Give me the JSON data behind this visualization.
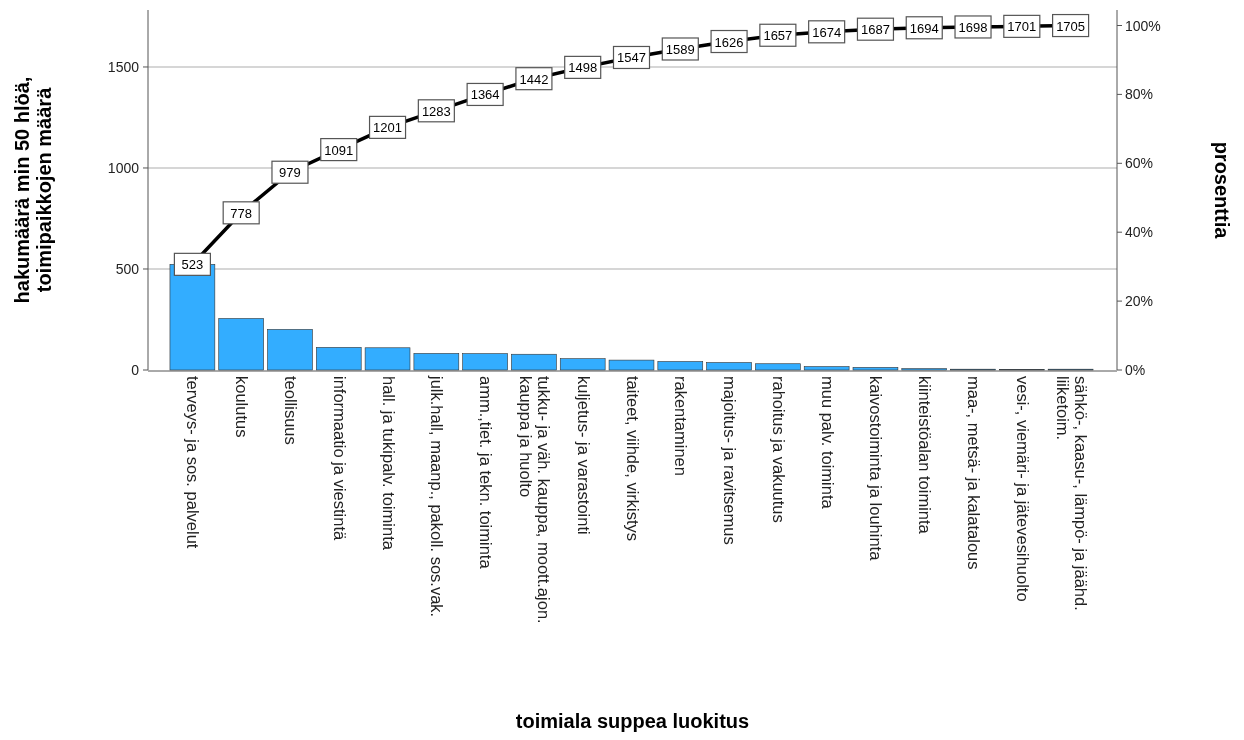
{
  "chart_data": {
    "type": "bar",
    "xlabel": "toimiala suppea luokitus",
    "ylabel": "hakumäärä min 50 hlöä, toimipaikkojen määrä",
    "y2label": "prosenttia",
    "categories": [
      "terveys- ja sos. palvelut",
      "koulutus",
      "teollisuus",
      "informaatio ja viestintä",
      "hall. ja tukipalv. toiminta",
      "julk.hall, maanp., pakoll. sos.vak.",
      "amm.,tiet. ja tekn. toiminta",
      "tukku- ja väh. kauppa, moott.ajon. kauppa ja huolto",
      "kuljetus- ja varastointi",
      "taiteet, viihde, virkistys",
      "rakentaminen",
      "majoitus- ja ravitsemus",
      "rahoitus ja vakuutus",
      "muu palv. toiminta",
      "kaivostoiminta ja louhinta",
      "kiinteistöalan toiminta",
      "maa-, metsä- ja kalatalous",
      "vesi-, viemäri- ja jätevesihuolto",
      "sähkö-, kaasu-, lämpö- ja jäähd. liiketoim."
    ],
    "series": [
      {
        "color": "#33adff",
        "values": [
          523,
          255,
          201,
          112,
          110,
          82,
          81,
          78,
          56,
          49,
          42,
          37,
          31,
          17,
          13,
          7,
          4,
          3,
          4
        ]
      },
      {
        "type": "line",
        "marker": "square",
        "color": "#000000",
        "values": [
          523,
          778,
          979,
          1091,
          1201,
          1283,
          1364,
          1442,
          1498,
          1547,
          1589,
          1626,
          1657,
          1674,
          1687,
          1694,
          1698,
          1701,
          1705
        ],
        "value_labels": [
          "523",
          "778",
          "979",
          "1091",
          "1201",
          "1283",
          "1364",
          "1442",
          "1498",
          "1547",
          "1589",
          "1626",
          "1657",
          "1674",
          "1687",
          "1694",
          "1698",
          "1701",
          "1705"
        ]
      }
    ],
    "ylim": [
      0,
      1782
    ],
    "yticks": [
      0,
      500,
      1000,
      1500
    ],
    "y2lim": [
      0,
      104.5
    ],
    "y2ticks": [
      {
        "value": 0,
        "label": "0%"
      },
      {
        "value": 20,
        "label": "20%"
      },
      {
        "value": 40,
        "label": "40%"
      },
      {
        "value": 60,
        "label": "60%"
      },
      {
        "value": 80,
        "label": "80%"
      },
      {
        "value": 100,
        "label": "100%"
      }
    ],
    "grid": "y"
  }
}
